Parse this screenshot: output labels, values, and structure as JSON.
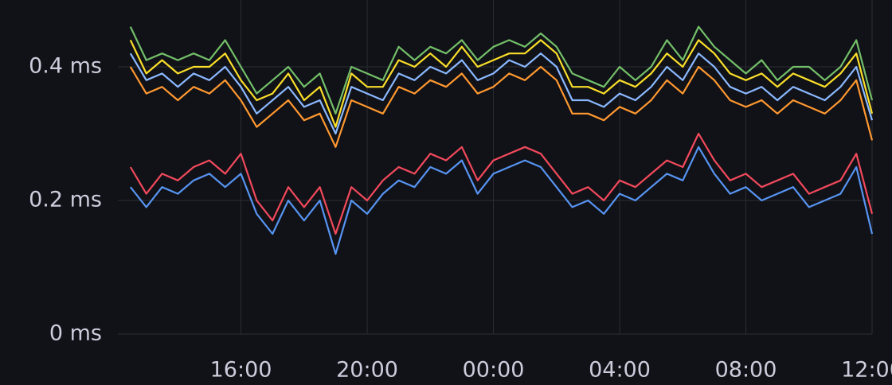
{
  "chart_data": {
    "type": "line",
    "x": [
      12.5,
      13,
      13.5,
      14,
      14.5,
      15,
      15.5,
      16,
      16.5,
      17,
      17.5,
      18,
      18.5,
      19,
      19.5,
      20,
      20.5,
      21,
      21.5,
      22,
      22.5,
      23,
      23.5,
      24,
      24.5,
      25,
      25.5,
      26,
      26.5,
      27,
      27.5,
      28,
      28.5,
      29,
      29.5,
      30,
      30.5,
      31,
      31.5,
      32,
      32.5,
      33,
      33.5,
      34,
      34.5,
      35,
      35.5,
      36
    ],
    "series": [
      {
        "color": "#73bf69",
        "values": [
          0.46,
          0.41,
          0.42,
          0.41,
          0.42,
          0.41,
          0.44,
          0.4,
          0.36,
          0.38,
          0.4,
          0.37,
          0.39,
          0.33,
          0.4,
          0.39,
          0.38,
          0.43,
          0.41,
          0.43,
          0.42,
          0.44,
          0.41,
          0.43,
          0.44,
          0.43,
          0.45,
          0.43,
          0.39,
          0.38,
          0.37,
          0.4,
          0.38,
          0.4,
          0.44,
          0.41,
          0.46,
          0.43,
          0.41,
          0.39,
          0.41,
          0.38,
          0.4,
          0.4,
          0.38,
          0.4,
          0.44,
          0.35
        ]
      },
      {
        "color": "#fade2a",
        "values": [
          0.44,
          0.39,
          0.41,
          0.39,
          0.4,
          0.4,
          0.42,
          0.38,
          0.35,
          0.36,
          0.39,
          0.35,
          0.37,
          0.31,
          0.39,
          0.37,
          0.37,
          0.41,
          0.4,
          0.42,
          0.4,
          0.43,
          0.4,
          0.41,
          0.42,
          0.42,
          0.44,
          0.42,
          0.37,
          0.37,
          0.36,
          0.38,
          0.37,
          0.39,
          0.42,
          0.4,
          0.44,
          0.42,
          0.39,
          0.38,
          0.39,
          0.37,
          0.39,
          0.38,
          0.37,
          0.39,
          0.42,
          0.33
        ]
      },
      {
        "color": "#8ab8ff",
        "values": [
          0.42,
          0.38,
          0.39,
          0.37,
          0.39,
          0.38,
          0.4,
          0.37,
          0.33,
          0.35,
          0.37,
          0.34,
          0.35,
          0.3,
          0.37,
          0.36,
          0.35,
          0.39,
          0.38,
          0.4,
          0.39,
          0.41,
          0.38,
          0.39,
          0.41,
          0.4,
          0.42,
          0.4,
          0.35,
          0.35,
          0.34,
          0.36,
          0.35,
          0.37,
          0.4,
          0.38,
          0.42,
          0.4,
          0.37,
          0.36,
          0.37,
          0.35,
          0.37,
          0.36,
          0.35,
          0.37,
          0.4,
          0.32
        ]
      },
      {
        "color": "#ff9830",
        "values": [
          0.4,
          0.36,
          0.37,
          0.35,
          0.37,
          0.36,
          0.38,
          0.35,
          0.31,
          0.33,
          0.35,
          0.32,
          0.33,
          0.28,
          0.35,
          0.34,
          0.33,
          0.37,
          0.36,
          0.38,
          0.37,
          0.39,
          0.36,
          0.37,
          0.39,
          0.38,
          0.4,
          0.38,
          0.33,
          0.33,
          0.32,
          0.34,
          0.33,
          0.35,
          0.38,
          0.36,
          0.4,
          0.38,
          0.35,
          0.34,
          0.35,
          0.33,
          0.35,
          0.34,
          0.33,
          0.35,
          0.38,
          0.29
        ]
      },
      {
        "color": "#f2495c",
        "values": [
          0.25,
          0.21,
          0.24,
          0.23,
          0.25,
          0.26,
          0.24,
          0.27,
          0.2,
          0.17,
          0.22,
          0.19,
          0.22,
          0.15,
          0.22,
          0.2,
          0.23,
          0.25,
          0.24,
          0.27,
          0.26,
          0.28,
          0.23,
          0.26,
          0.27,
          0.28,
          0.27,
          0.24,
          0.21,
          0.22,
          0.2,
          0.23,
          0.22,
          0.24,
          0.26,
          0.25,
          0.3,
          0.26,
          0.23,
          0.24,
          0.22,
          0.23,
          0.24,
          0.21,
          0.22,
          0.23,
          0.27,
          0.18
        ]
      },
      {
        "color": "#5794f2",
        "values": [
          0.22,
          0.19,
          0.22,
          0.21,
          0.23,
          0.24,
          0.22,
          0.24,
          0.18,
          0.15,
          0.2,
          0.17,
          0.2,
          0.12,
          0.2,
          0.18,
          0.21,
          0.23,
          0.22,
          0.25,
          0.24,
          0.26,
          0.21,
          0.24,
          0.25,
          0.26,
          0.25,
          0.22,
          0.19,
          0.2,
          0.18,
          0.21,
          0.2,
          0.22,
          0.24,
          0.23,
          0.28,
          0.24,
          0.21,
          0.22,
          0.2,
          0.21,
          0.22,
          0.19,
          0.2,
          0.21,
          0.25,
          0.15
        ]
      }
    ],
    "xlim": [
      12.1,
      36
    ],
    "xticks": [
      {
        "value": 16,
        "label": "16:00"
      },
      {
        "value": 20,
        "label": "20:00"
      },
      {
        "value": 24,
        "label": "00:00"
      },
      {
        "value": 28,
        "label": "04:00"
      },
      {
        "value": 32,
        "label": "08:00"
      },
      {
        "value": 36,
        "label": "12:00"
      }
    ],
    "ylim": [
      0,
      0.5
    ],
    "yticks": [
      {
        "value": 0,
        "label": "0 ms"
      },
      {
        "value": 0.2,
        "label": "0.2 ms"
      },
      {
        "value": 0.4,
        "label": "0.4 ms"
      }
    ],
    "grid": true
  }
}
